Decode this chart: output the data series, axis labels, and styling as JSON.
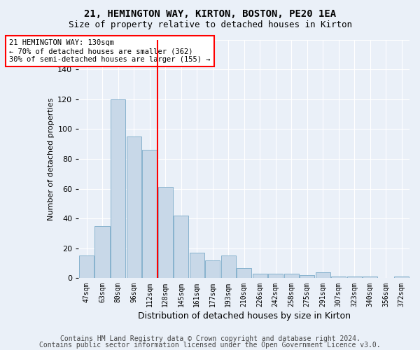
{
  "title": "21, HEMINGTON WAY, KIRTON, BOSTON, PE20 1EA",
  "subtitle": "Size of property relative to detached houses in Kirton",
  "xlabel": "Distribution of detached houses by size in Kirton",
  "ylabel": "Number of detached properties",
  "categories": [
    "47sqm",
    "63sqm",
    "80sqm",
    "96sqm",
    "112sqm",
    "128sqm",
    "145sqm",
    "161sqm",
    "177sqm",
    "193sqm",
    "210sqm",
    "226sqm",
    "242sqm",
    "258sqm",
    "275sqm",
    "291sqm",
    "307sqm",
    "323sqm",
    "340sqm",
    "356sqm",
    "372sqm"
  ],
  "values": [
    15,
    35,
    120,
    95,
    86,
    61,
    42,
    17,
    12,
    15,
    7,
    3,
    3,
    3,
    2,
    4,
    1,
    1,
    1,
    0,
    1
  ],
  "bar_color": "#c8d8e8",
  "bar_edge_color": "#7aaac8",
  "annotation_text": "21 HEMINGTON WAY: 130sqm\n← 70% of detached houses are smaller (362)\n30% of semi-detached houses are larger (155) →",
  "annotation_box_color": "white",
  "annotation_box_edge": "red",
  "vertical_line_color": "red",
  "footer_line1": "Contains HM Land Registry data © Crown copyright and database right 2024.",
  "footer_line2": "Contains public sector information licensed under the Open Government Licence v3.0.",
  "background_color": "#eaf0f8",
  "plot_bg_color": "#eaf0f8",
  "ylim": [
    0,
    160
  ],
  "title_fontsize": 10,
  "subtitle_fontsize": 9,
  "footer_fontsize": 7
}
